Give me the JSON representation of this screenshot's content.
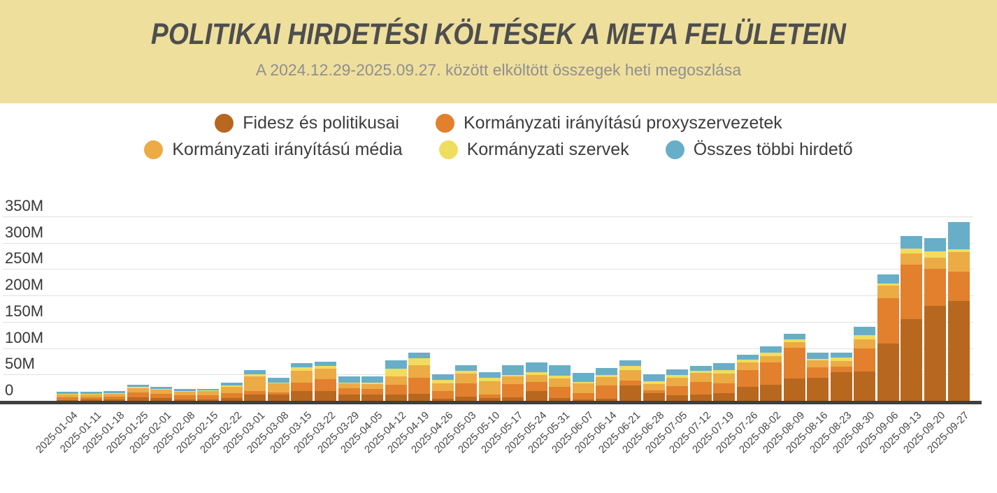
{
  "header": {
    "title": "POLITIKAI HIRDETÉSI KÖLTÉSEK A META FELÜLETEIN",
    "subtitle": "A 2024.12.29-2025.09.27. között elköltött összegek heti megoszlása",
    "background_color": "#efdf9d"
  },
  "colors": {
    "page_background": "#ffffff",
    "title_text": "#4e4e4e",
    "subtitle_text": "#8f8f8f",
    "legend_text": "#3d3d3d",
    "gridline": "#e1e1e1",
    "axis_line": "#3f3f3f",
    "y_tick_text": "#373737",
    "x_label_text": "#464646"
  },
  "chart_data": {
    "type": "bar",
    "stacked": true,
    "grid": true,
    "legend_position": "top",
    "unit": "M",
    "ylim": [
      0,
      350
    ],
    "yticks": [
      0,
      50,
      100,
      150,
      200,
      250,
      300,
      350
    ],
    "ytick_labels": [
      "0",
      "50M",
      "100M",
      "150M",
      "200M",
      "250M",
      "300M",
      "350M"
    ],
    "xlabel": "",
    "ylabel": "",
    "categories": [
      "2025-01-04",
      "2025-01-11",
      "2025-01-18",
      "2025-01-25",
      "2025-02-01",
      "2025-02-08",
      "2025-02-15",
      "2025-02-22",
      "2025-03-01",
      "2025-03-08",
      "2025-03-15",
      "2025-03-22",
      "2025-03-29",
      "2025-04-05",
      "2025-04-12",
      "2025-04-19",
      "2025-04-26",
      "2025-05-03",
      "2025-05-10",
      "2025-05-17",
      "2025-05-24",
      "2025-05-31",
      "2025-06-07",
      "2025-06-14",
      "2025-06-21",
      "2025-06-28",
      "2025-07-05",
      "2025-07-12",
      "2025-07-19",
      "2025-07-26",
      "2025-08-02",
      "2025-08-09",
      "2025-08-16",
      "2025-08-23",
      "2025-08-30",
      "2025-09-06",
      "2025-09-13",
      "2025-09-20",
      "2025-09-27"
    ],
    "series": [
      {
        "name": "Fidesz és politikusai",
        "color": "#b8671f",
        "values": [
          1,
          2,
          3,
          6,
          5,
          3,
          3,
          5,
          12,
          12,
          18,
          18,
          12,
          12,
          12,
          13,
          4,
          8,
          5,
          7,
          18,
          5,
          2,
          4,
          29,
          14,
          10,
          12,
          15,
          27,
          31,
          43,
          44,
          54,
          56,
          108,
          155,
          180,
          190
        ]
      },
      {
        "name": "Kormányzati irányítású proxyszervezetek",
        "color": "#e2802d",
        "values": [
          5,
          5,
          5,
          10,
          8,
          7,
          7,
          9,
          6,
          4,
          17,
          23,
          12,
          11,
          18,
          31,
          14,
          25,
          7,
          25,
          18,
          22,
          13,
          25,
          10,
          6,
          18,
          24,
          18,
          31,
          42,
          58,
          19,
          11,
          43,
          87,
          103,
          70,
          55
        ]
      },
      {
        "name": "Kormányzati irányítású média",
        "color": "#ecab44",
        "values": [
          6,
          5,
          6,
          8,
          8,
          7,
          8,
          12,
          28,
          17,
          22,
          20,
          9,
          9,
          16,
          23,
          15,
          19,
          25,
          14,
          13,
          16,
          18,
          16,
          19,
          12,
          16,
          17,
          19,
          15,
          12,
          10,
          14,
          10,
          17,
          23,
          22,
          22,
          37
        ]
      },
      {
        "name": "Kormányzati szervek",
        "color": "#f0dd60",
        "values": [
          1,
          1,
          1,
          2,
          2,
          2,
          2,
          3,
          4,
          2,
          7,
          5,
          2,
          2,
          15,
          14,
          7,
          5,
          7,
          3,
          5,
          5,
          3,
          4,
          8,
          5,
          5,
          4,
          6,
          5,
          7,
          6,
          3,
          7,
          8,
          4,
          9,
          12,
          5
        ]
      },
      {
        "name": "Összes többi hirdető",
        "color": "#68aec9",
        "values": [
          4,
          4,
          4,
          5,
          4,
          3,
          3,
          5,
          8,
          9,
          7,
          8,
          11,
          12,
          16,
          10,
          10,
          10,
          10,
          18,
          19,
          19,
          17,
          13,
          11,
          13,
          11,
          9,
          13,
          10,
          11,
          10,
          12,
          10,
          16,
          18,
          24,
          25,
          52
        ]
      }
    ]
  }
}
